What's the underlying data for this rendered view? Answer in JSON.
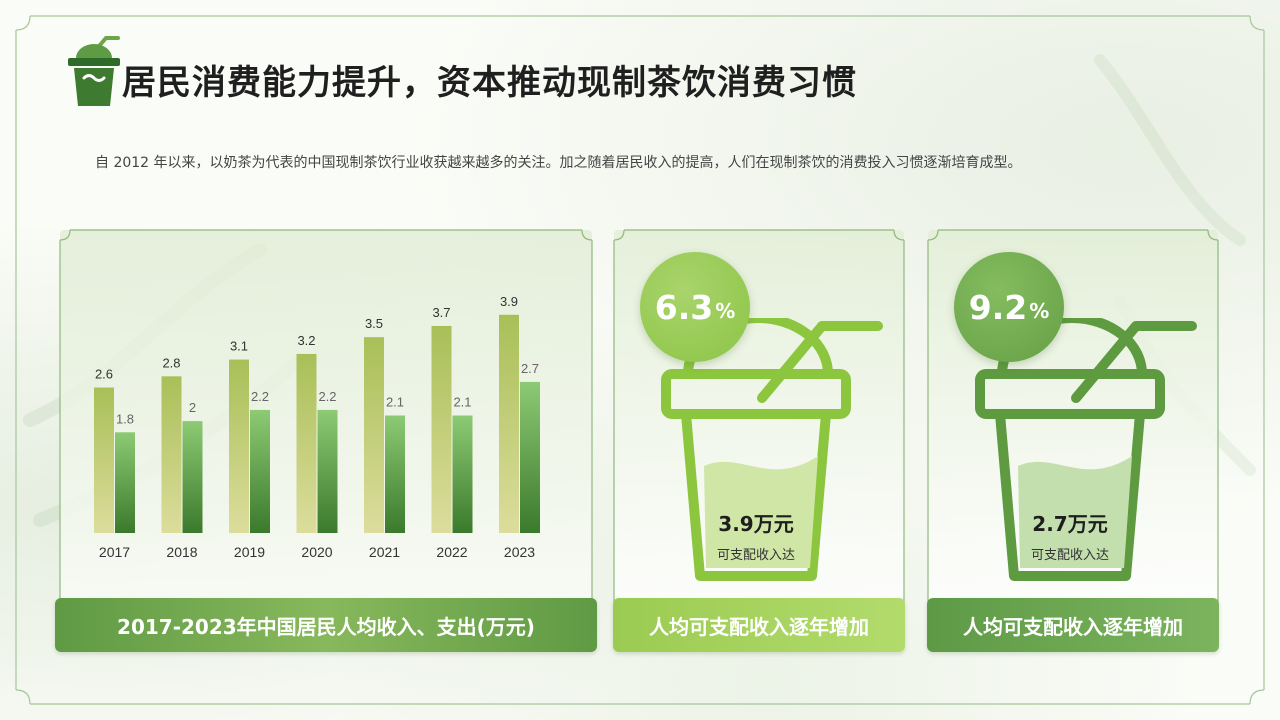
{
  "title": "居民消费能力提升，资本推动现制茶饮消费习惯",
  "intro": "自 2012 年以来，以奶茶为代表的中国现制茶饮行业收获越来越多的关注。加之随着居民收入的提高，人们在现制茶饮的消费投入习惯逐渐培育成型。",
  "chart_data": {
    "type": "bar",
    "title": "2017-2023年中国居民人均收入、支出(万元)",
    "categories": [
      "2017",
      "2018",
      "2019",
      "2020",
      "2021",
      "2022",
      "2023"
    ],
    "series": [
      {
        "values": [
          2.6,
          2.8,
          3.1,
          3.2,
          3.5,
          3.7,
          3.9
        ]
      },
      {
        "values": [
          1.8,
          2,
          2.2,
          2.2,
          2.1,
          2.1,
          2.7
        ]
      }
    ],
    "ylim": [
      0,
      4.2
    ],
    "grid": false,
    "legend": "none"
  },
  "stats": [
    {
      "percent": "6.3",
      "unit": "%",
      "amount": "3.9万元",
      "sub": "可支配收入达",
      "caption": "人均可支配收入逐年增加",
      "color": "#8cc63f"
    },
    {
      "percent": "9.2",
      "unit": "%",
      "amount": "2.7万元",
      "sub": "可支配收入达",
      "caption": "人均可支配收入逐年增加",
      "color": "#5e9a40"
    }
  ],
  "colors": {
    "series1_top": "#a9bf58",
    "series1_bottom": "#dcdd9c",
    "series2_top": "#8dca74",
    "series2_bottom": "#3b7a2c",
    "accent": "#5f9a44"
  },
  "icons": {
    "title_icon": "bubble-tea-cup-icon",
    "cup_icon": "drink-cup-icon"
  }
}
